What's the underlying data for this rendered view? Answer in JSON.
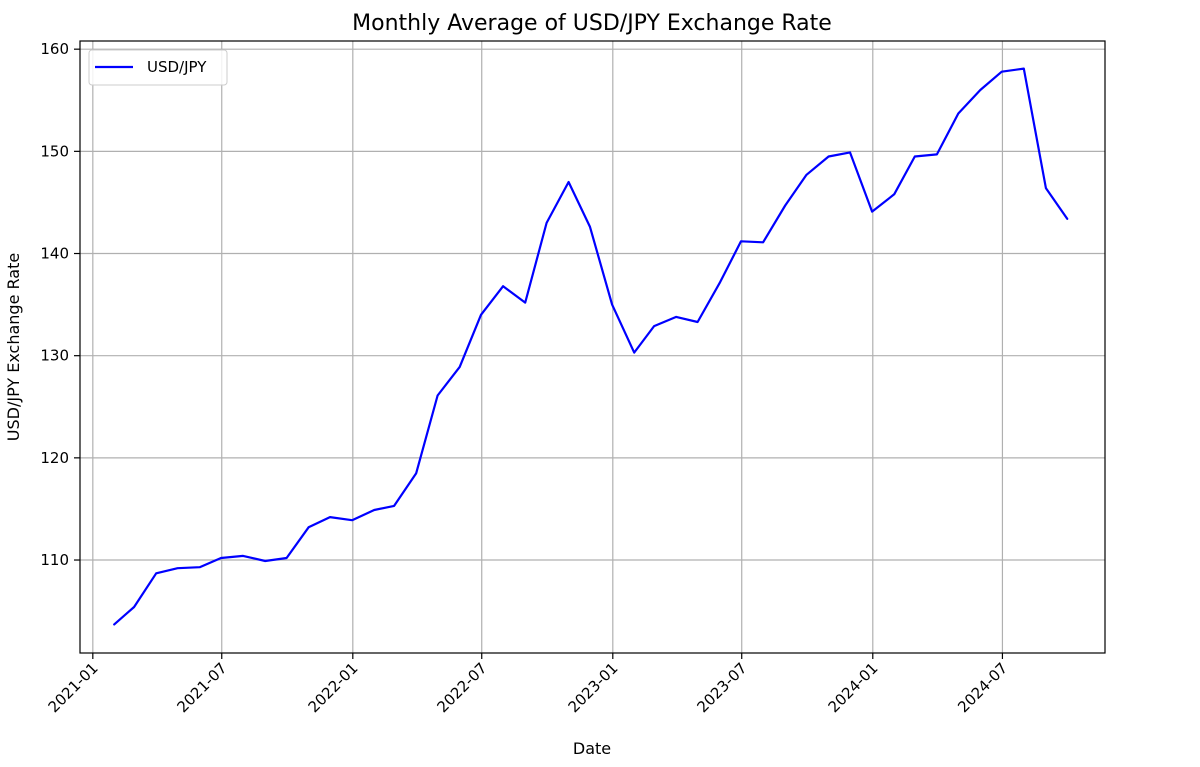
{
  "chart_data": {
    "type": "line",
    "title": "Monthly Average of USD/JPY Exchange Rate",
    "xlabel": "Date",
    "ylabel": "USD/JPY Exchange Rate",
    "x_tick_labels": [
      "2021-01",
      "2021-07",
      "2022-01",
      "2022-07",
      "2023-01",
      "2023-07",
      "2024-01",
      "2024-07"
    ],
    "x_ticks": [
      "2021-01-01",
      "2021-07-01",
      "2022-01-01",
      "2022-07-01",
      "2023-01-01",
      "2023-07-01",
      "2024-01-01",
      "2024-07-01"
    ],
    "y_ticks": [
      110,
      120,
      130,
      140,
      150,
      160
    ],
    "xlim": [
      "2020-12-14",
      "2024-11-22"
    ],
    "ylim": [
      100.9,
      160.8
    ],
    "grid": true,
    "legend_position": "top-left",
    "series": [
      {
        "name": "USD/JPY",
        "color": "#0000ff",
        "x": [
          "2021-01-31",
          "2021-02-28",
          "2021-03-31",
          "2021-04-30",
          "2021-05-31",
          "2021-06-30",
          "2021-07-31",
          "2021-08-31",
          "2021-09-30",
          "2021-10-31",
          "2021-11-30",
          "2021-12-31",
          "2022-01-31",
          "2022-02-28",
          "2022-03-31",
          "2022-04-30",
          "2022-05-31",
          "2022-06-30",
          "2022-07-31",
          "2022-08-31",
          "2022-09-30",
          "2022-10-31",
          "2022-11-30",
          "2022-12-31",
          "2023-01-31",
          "2023-02-28",
          "2023-03-31",
          "2023-04-30",
          "2023-05-31",
          "2023-06-30",
          "2023-07-31",
          "2023-08-31",
          "2023-09-30",
          "2023-10-31",
          "2023-11-30",
          "2023-12-31",
          "2024-01-31",
          "2024-02-29",
          "2024-03-31",
          "2024-04-30",
          "2024-05-31",
          "2024-06-30",
          "2024-07-31",
          "2024-08-31",
          "2024-09-30"
        ],
        "values": [
          103.7,
          105.4,
          108.7,
          109.2,
          109.3,
          110.2,
          110.4,
          109.9,
          110.2,
          113.2,
          114.2,
          113.9,
          114.9,
          115.3,
          118.5,
          126.1,
          128.9,
          134.0,
          136.8,
          135.2,
          143.0,
          147.0,
          142.6,
          135.0,
          130.3,
          132.9,
          133.8,
          133.3,
          137.1,
          141.2,
          141.1,
          144.7,
          147.7,
          149.5,
          149.9,
          144.1,
          145.8,
          149.5,
          149.7,
          153.7,
          156.0,
          157.8,
          158.1,
          146.4,
          143.4
        ]
      }
    ]
  }
}
